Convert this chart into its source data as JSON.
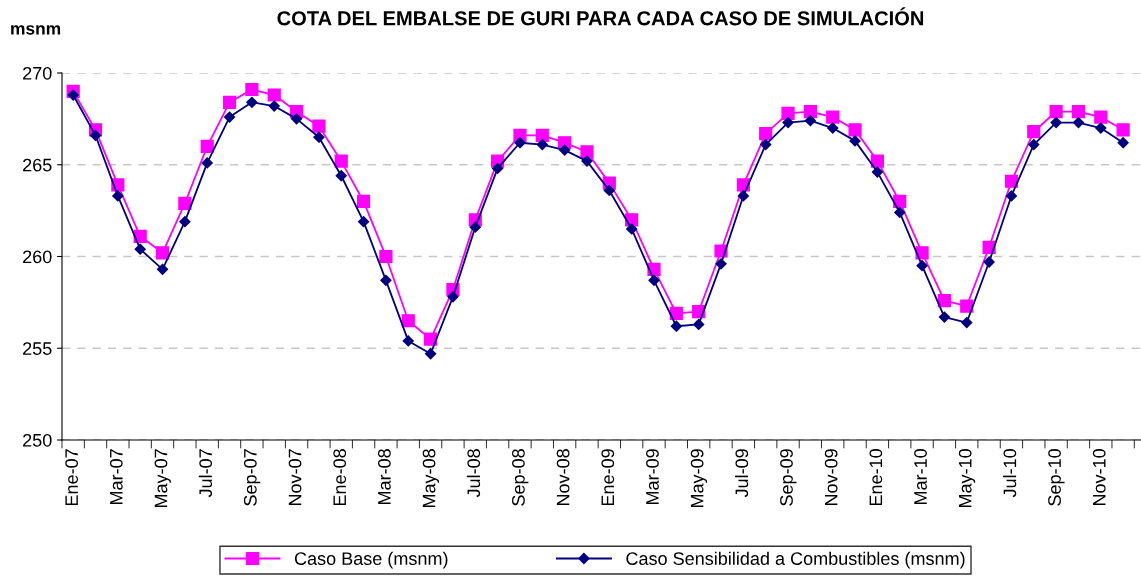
{
  "chart_data": {
    "type": "line",
    "title": "COTA DEL EMBALSE DE GURI PARA CADA CASO DE SIMULACIÓN",
    "ylabel": "msnm",
    "categories": [
      "Ene-07",
      null,
      "Mar-07",
      null,
      "May-07",
      null,
      "Jul-07",
      null,
      "Sep-07",
      null,
      "Nov-07",
      null,
      "Ene-08",
      null,
      "Mar-08",
      null,
      "May-08",
      null,
      "Jul-08",
      null,
      "Sep-08",
      null,
      "Nov-08",
      null,
      "Ene-09",
      null,
      "Mar-09",
      null,
      "May-09",
      null,
      "Jul-09",
      null,
      "Sep-09",
      null,
      "Nov-09",
      null,
      "Ene-10",
      null,
      "Mar-10",
      null,
      "May-10",
      null,
      "Jul-10",
      null,
      "Sep-10",
      null,
      "Nov-10",
      null
    ],
    "series": [
      {
        "name": "Caso Base (msnm)",
        "color": "#ff00ff",
        "marker": "square",
        "values": [
          269.0,
          266.9,
          263.9,
          261.1,
          260.2,
          262.9,
          266.0,
          268.4,
          269.1,
          268.8,
          267.9,
          267.1,
          265.2,
          263.0,
          260.0,
          256.5,
          255.5,
          258.2,
          262.0,
          265.2,
          266.6,
          266.6,
          266.2,
          265.7,
          264.0,
          262.0,
          259.3,
          256.9,
          257.0,
          260.3,
          263.9,
          266.7,
          267.8,
          267.9,
          267.6,
          266.9,
          265.2,
          263.0,
          260.2,
          257.6,
          257.3,
          260.5,
          264.1,
          266.8,
          267.9,
          267.9,
          267.6,
          266.9
        ]
      },
      {
        "name": "Caso Sensibilidad a Combustibles (msnm)",
        "color": "#000080",
        "marker": "diamond",
        "values": [
          268.8,
          266.6,
          263.3,
          260.4,
          259.3,
          261.9,
          265.1,
          267.6,
          268.4,
          268.2,
          267.5,
          266.5,
          264.4,
          261.9,
          258.7,
          255.4,
          254.7,
          257.8,
          261.6,
          264.8,
          266.2,
          266.1,
          265.8,
          265.2,
          263.6,
          261.5,
          258.7,
          256.2,
          256.3,
          259.6,
          263.3,
          266.1,
          267.3,
          267.4,
          267.0,
          266.3,
          264.6,
          262.4,
          259.5,
          256.7,
          256.4,
          259.7,
          263.3,
          266.1,
          267.3,
          267.3,
          267.0,
          266.2
        ]
      }
    ],
    "ylim": [
      250,
      270
    ],
    "yticks": [
      250,
      255,
      260,
      265,
      270
    ],
    "grid": "y",
    "legend": "bottom",
    "line_style": "solid"
  }
}
